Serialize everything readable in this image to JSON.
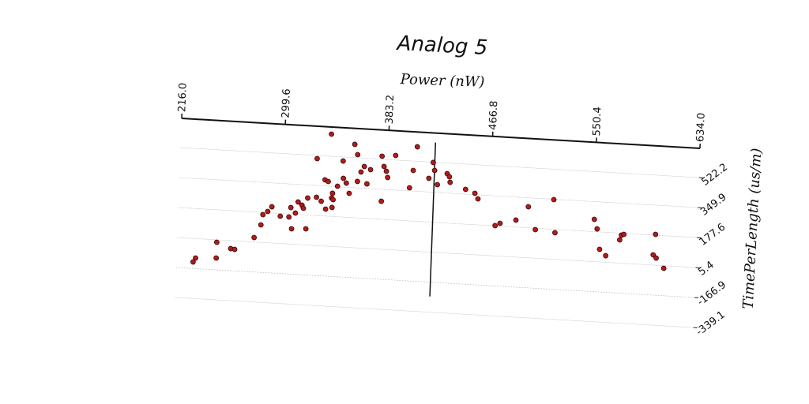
{
  "chart_data": {
    "type": "scatter",
    "title": "Analog 5",
    "x_label": "Power (nW)",
    "y_label": "TimePerLength (us/m)",
    "x": [
      229.4,
      231.3,
      247.9,
      247.9,
      259.3,
      262.5,
      277.8,
      282.9,
      284.2,
      288.0,
      291.2,
      298.2,
      305.2,
      306.5,
      307.7,
      310.3,
      312.2,
      315.4,
      316.6,
      319.2,
      319.8,
      326.8,
      326.2,
      330.7,
      333.2,
      334.5,
      335.8,
      337.0,
      339.0,
      339.6,
      339.6,
      340.2,
      343.4,
      347.2,
      347.9,
      350.4,
      353.0,
      356.1,
      358.7,
      359.3,
      361.9,
      364.4,
      367.0,
      369.5,
      378.4,
      379.1,
      380.3,
      382.3,
      383.5,
      389.3,
      401.4,
      403.9,
      406.5,
      416.7,
      419.8,
      421.1,
      423.7,
      431.3,
      433.2,
      433.9,
      446.6,
      454.2,
      456.8,
      471.4,
      475.3,
      488.0,
      497.6,
      503.9,
      517.9,
      519.8,
      551.1,
      553.6,
      556.2,
      561.3,
      572.1,
      573.4,
      575.3,
      600.8,
      599.5,
      602.0,
      608.4
    ],
    "series": [
      {
        "color": "#b01c1c",
        "values": [
          -129.7,
          -106.2,
          -8.7,
          -99.4,
          -40.4,
          -43.6,
          30.8,
          105.6,
          164.9,
          184.9,
          213.0,
          161.8,
          160.0,
          214.8,
          93.3,
          184.9,
          249.3,
          232.1,
          214.8,
          97.9,
          275.1,
          282.4,
          504.1,
          261.1,
          384.9,
          217.6,
          376.7,
          649.2,
          282.8,
          310.5,
          228.9,
          274.2,
          352.7,
          499.1,
          399.8,
          373.5,
          315.9,
          598.4,
          540.4,
          386.7,
          442.0,
          474.6,
          375.8,
          458.8,
          539.5,
          281.0,
          481.4,
          454.7,
          419.3,
          548.5,
          367.6,
          468.3,
          605.2,
          428.4,
          520.4,
          475.5,
          394.8,
          461.5,
          444.3,
          412.5,
          377.2,
          357.7,
          326.8,
          179.0,
          194.0,
          217.6,
          298.3,
          169.5,
          347.7,
          158.2,
          247.9,
          194.4,
          77.9,
          43.4,
          138.7,
          166.3,
          171.8,
          182.2,
          63.9,
          46.6,
          -9.6
        ]
      }
    ],
    "vline": 421,
    "xlim": [
      216,
      634
    ],
    "ylim": [
      -339.1,
      690
    ],
    "xticks": [
      {
        "value": 216,
        "label": "216.0"
      },
      299.6,
      383.2,
      466.8,
      550.4,
      {
        "value": 634,
        "label": "634.0"
      }
    ],
    "yticks": [
      522.2,
      349.9,
      177.6,
      5.4,
      -166.9,
      -339.1
    ],
    "grid": true
  }
}
